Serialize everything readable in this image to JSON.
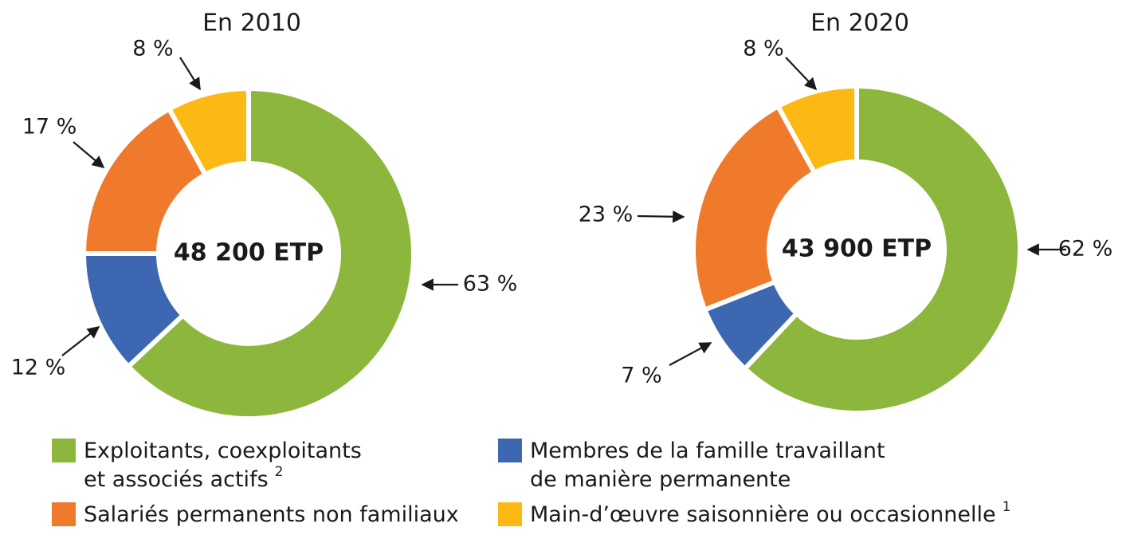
{
  "chart_data": [
    {
      "type": "pie",
      "title": "En 2010",
      "center_label": "48 200 ETP",
      "values": [
        63,
        12,
        17,
        8
      ],
      "value_labels": [
        "63 %",
        "12 %",
        "17 %",
        "8 %"
      ],
      "colors": [
        "#8db63c",
        "#3d67b1",
        "#f07a2c",
        "#fdb913"
      ]
    },
    {
      "type": "pie",
      "title": "En 2020",
      "center_label": "43 900 ETP",
      "values": [
        62,
        7,
        23,
        8
      ],
      "value_labels": [
        "62 %",
        "7 %",
        "23 %",
        "8 %"
      ],
      "colors": [
        "#8db63c",
        "#3d67b1",
        "#f07a2c",
        "#fdb913"
      ]
    }
  ],
  "legend": [
    {
      "lines": [
        "Exploitants, coexploitants",
        "et associés actifs"
      ],
      "note": "2"
    },
    {
      "lines": [
        "Membres de la famille travaillant",
        "de manière permanente"
      ]
    },
    {
      "lines": [
        "Salariés permanents non familiaux"
      ]
    },
    {
      "lines": [
        "Main-d’œuvre saisonnière ou occasionnelle"
      ],
      "note": "1"
    }
  ]
}
